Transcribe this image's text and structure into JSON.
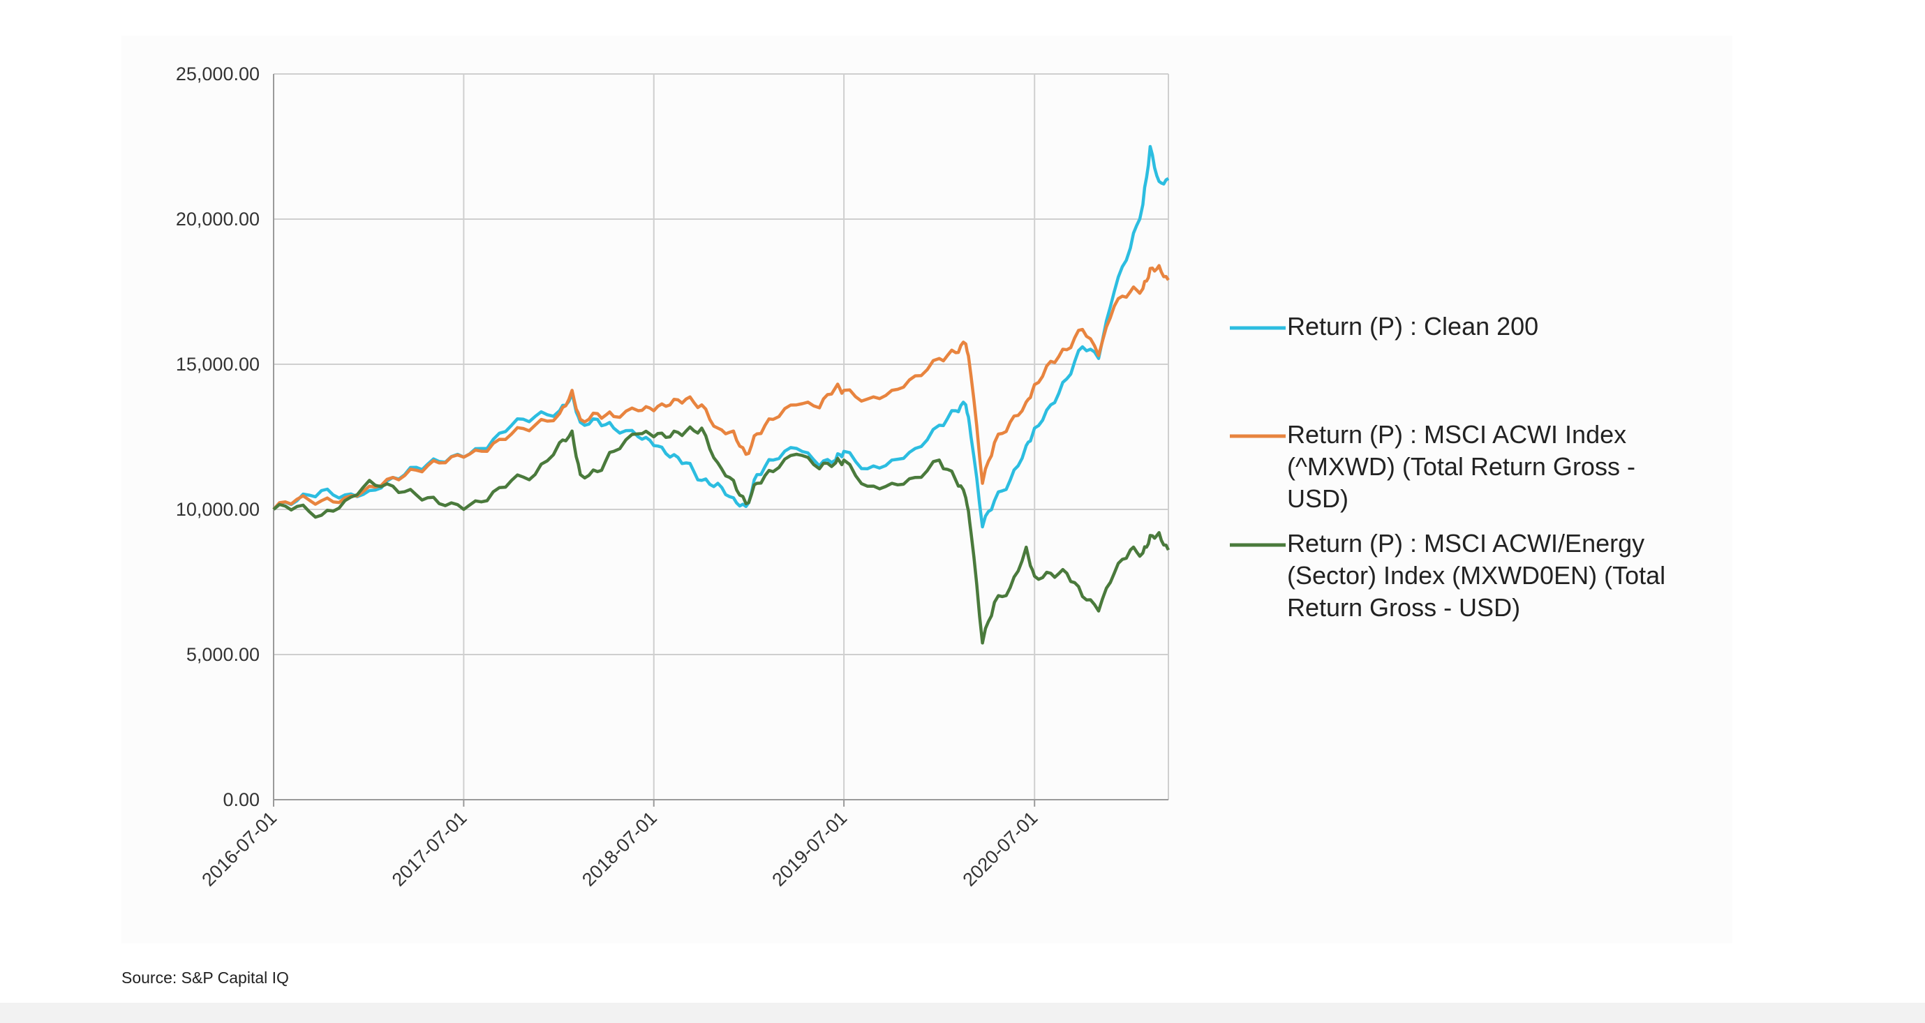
{
  "source_note": "Source: S&P Capital IQ",
  "chart_data": {
    "type": "line",
    "x_ticks": [
      "2016-07-01",
      "2017-07-01",
      "2018-07-01",
      "2019-07-01",
      "2020-07-01"
    ],
    "x_range": [
      "2016-07-01",
      "2021-03-15"
    ],
    "y_ticks": [
      "0.00",
      "5,000.00",
      "10,000.00",
      "15,000.00",
      "20,000.00",
      "25,000.00"
    ],
    "ylim": [
      0,
      25000
    ],
    "grid": true,
    "legend_position": "right",
    "series": [
      {
        "name": "Return (P) : Clean 200",
        "legend_lines": [
          "Return (P) : Clean 200"
        ],
        "color": "#2cbde0",
        "points": [
          [
            "2016-07-01",
            10000
          ],
          [
            "2016-08-15",
            10300
          ],
          [
            "2016-10-01",
            10650
          ],
          [
            "2016-11-15",
            10500
          ],
          [
            "2017-01-01",
            10650
          ],
          [
            "2017-02-15",
            11100
          ],
          [
            "2017-04-01",
            11450
          ],
          [
            "2017-05-15",
            11650
          ],
          [
            "2017-07-01",
            11800
          ],
          [
            "2017-08-15",
            12100
          ],
          [
            "2017-10-01",
            12900
          ],
          [
            "2017-11-15",
            13200
          ],
          [
            "2018-01-01",
            13400
          ],
          [
            "2018-01-25",
            14000
          ],
          [
            "2018-02-10",
            13000
          ],
          [
            "2018-03-15",
            13100
          ],
          [
            "2018-04-15",
            12800
          ],
          [
            "2018-06-01",
            12500
          ],
          [
            "2018-07-01",
            12200
          ],
          [
            "2018-08-01",
            11800
          ],
          [
            "2018-09-01",
            11600
          ],
          [
            "2018-10-01",
            11000
          ],
          [
            "2018-11-01",
            10900
          ],
          [
            "2018-12-01",
            10400
          ],
          [
            "2018-12-25",
            10100
          ],
          [
            "2019-01-15",
            11200
          ],
          [
            "2019-02-15",
            11700
          ],
          [
            "2019-04-01",
            12100
          ],
          [
            "2019-05-15",
            11500
          ],
          [
            "2019-06-15",
            11700
          ],
          [
            "2019-07-01",
            12000
          ],
          [
            "2019-08-15",
            11400
          ],
          [
            "2019-10-01",
            11700
          ],
          [
            "2019-11-15",
            12100
          ],
          [
            "2019-12-31",
            12900
          ],
          [
            "2020-02-01",
            13400
          ],
          [
            "2020-02-20",
            13600
          ],
          [
            "2020-03-01",
            12500
          ],
          [
            "2020-03-23",
            9400
          ],
          [
            "2020-04-15",
            10300
          ],
          [
            "2020-05-15",
            11000
          ],
          [
            "2020-06-15",
            12200
          ],
          [
            "2020-07-01",
            12800
          ],
          [
            "2020-08-01",
            13600
          ],
          [
            "2020-09-01",
            14500
          ],
          [
            "2020-10-01",
            15600
          ],
          [
            "2020-11-01",
            15200
          ],
          [
            "2020-12-01",
            17500
          ],
          [
            "2021-01-01",
            19000
          ],
          [
            "2021-01-25",
            20500
          ],
          [
            "2021-02-08",
            22500
          ],
          [
            "2021-02-25",
            21300
          ],
          [
            "2021-03-15",
            21400
          ]
        ]
      },
      {
        "name": "Return (P) : MSCI ACWI Index (^MXWD) (Total Return Gross - USD)",
        "legend_lines": [
          "Return (P) : MSCI ACWI Index",
          "(^MXWD) (Total Return Gross -",
          "USD)"
        ],
        "color": "#e8843f",
        "points": [
          [
            "2016-07-01",
            10000
          ],
          [
            "2016-08-15",
            10350
          ],
          [
            "2016-10-01",
            10300
          ],
          [
            "2016-11-15",
            10400
          ],
          [
            "2017-01-01",
            10800
          ],
          [
            "2017-02-15",
            11100
          ],
          [
            "2017-04-01",
            11350
          ],
          [
            "2017-05-15",
            11600
          ],
          [
            "2017-07-01",
            11800
          ],
          [
            "2017-08-15",
            12000
          ],
          [
            "2017-10-01",
            12600
          ],
          [
            "2017-11-15",
            12900
          ],
          [
            "2018-01-01",
            13300
          ],
          [
            "2018-01-25",
            14100
          ],
          [
            "2018-02-10",
            13100
          ],
          [
            "2018-03-15",
            13300
          ],
          [
            "2018-04-15",
            13200
          ],
          [
            "2018-06-01",
            13400
          ],
          [
            "2018-07-01",
            13400
          ],
          [
            "2018-08-01",
            13600
          ],
          [
            "2018-09-01",
            13800
          ],
          [
            "2018-10-01",
            13600
          ],
          [
            "2018-11-01",
            12800
          ],
          [
            "2018-12-01",
            12700
          ],
          [
            "2018-12-25",
            11900
          ],
          [
            "2019-01-15",
            12600
          ],
          [
            "2019-02-15",
            13100
          ],
          [
            "2019-04-01",
            13600
          ],
          [
            "2019-05-15",
            13500
          ],
          [
            "2019-06-15",
            14200
          ],
          [
            "2019-07-01",
            14100
          ],
          [
            "2019-08-15",
            13800
          ],
          [
            "2019-10-01",
            14100
          ],
          [
            "2019-11-15",
            14600
          ],
          [
            "2019-12-31",
            15200
          ],
          [
            "2020-02-01",
            15400
          ],
          [
            "2020-02-20",
            15700
          ],
          [
            "2020-03-01",
            14600
          ],
          [
            "2020-03-23",
            10900
          ],
          [
            "2020-04-15",
            12300
          ],
          [
            "2020-05-15",
            13000
          ],
          [
            "2020-06-15",
            13700
          ],
          [
            "2020-07-01",
            14300
          ],
          [
            "2020-08-01",
            15100
          ],
          [
            "2020-09-01",
            15500
          ],
          [
            "2020-10-01",
            16200
          ],
          [
            "2020-11-01",
            15300
          ],
          [
            "2020-12-01",
            17000
          ],
          [
            "2021-01-01",
            17500
          ],
          [
            "2021-01-25",
            17600
          ],
          [
            "2021-02-08",
            18300
          ],
          [
            "2021-02-25",
            18400
          ],
          [
            "2021-03-15",
            17900
          ]
        ]
      },
      {
        "name": "Return (P) : MSCI ACWI/Energy (Sector) Index (MXWD0EN) (Total Return Gross - USD)",
        "legend_lines": [
          "Return (P) : MSCI ACWI/Energy",
          "(Sector) Index (MXWD0EN) (Total",
          "Return Gross - USD)"
        ],
        "color": "#4a7a3c",
        "points": [
          [
            "2016-07-01",
            10000
          ],
          [
            "2016-08-15",
            10100
          ],
          [
            "2016-10-01",
            9800
          ],
          [
            "2016-11-15",
            10300
          ],
          [
            "2017-01-01",
            11000
          ],
          [
            "2017-02-15",
            10800
          ],
          [
            "2017-04-01",
            10500
          ],
          [
            "2017-05-15",
            10200
          ],
          [
            "2017-07-01",
            10000
          ],
          [
            "2017-08-15",
            10300
          ],
          [
            "2017-10-01",
            11000
          ],
          [
            "2017-11-15",
            11200
          ],
          [
            "2018-01-01",
            12300
          ],
          [
            "2018-01-25",
            12700
          ],
          [
            "2018-02-10",
            11200
          ],
          [
            "2018-03-15",
            11300
          ],
          [
            "2018-04-15",
            12000
          ],
          [
            "2018-06-01",
            12600
          ],
          [
            "2018-07-01",
            12500
          ],
          [
            "2018-08-01",
            12500
          ],
          [
            "2018-09-01",
            12700
          ],
          [
            "2018-10-01",
            12800
          ],
          [
            "2018-11-01",
            11600
          ],
          [
            "2018-12-01",
            11000
          ],
          [
            "2018-12-25",
            10200
          ],
          [
            "2019-01-15",
            10900
          ],
          [
            "2019-02-15",
            11300
          ],
          [
            "2019-04-01",
            11900
          ],
          [
            "2019-05-15",
            11400
          ],
          [
            "2019-06-15",
            11600
          ],
          [
            "2019-07-01",
            11700
          ],
          [
            "2019-08-15",
            10800
          ],
          [
            "2019-10-01",
            10900
          ],
          [
            "2019-11-15",
            11100
          ],
          [
            "2019-12-31",
            11700
          ],
          [
            "2020-02-01",
            11000
          ],
          [
            "2020-02-20",
            10400
          ],
          [
            "2020-03-01",
            9200
          ],
          [
            "2020-03-23",
            5400
          ],
          [
            "2020-04-15",
            6800
          ],
          [
            "2020-05-15",
            7300
          ],
          [
            "2020-06-15",
            8700
          ],
          [
            "2020-07-01",
            7700
          ],
          [
            "2020-08-01",
            7800
          ],
          [
            "2020-09-01",
            7800
          ],
          [
            "2020-10-01",
            7000
          ],
          [
            "2020-11-01",
            6500
          ],
          [
            "2020-12-01",
            7800
          ],
          [
            "2021-01-01",
            8600
          ],
          [
            "2021-01-25",
            8500
          ],
          [
            "2021-02-08",
            9100
          ],
          [
            "2021-02-25",
            9200
          ],
          [
            "2021-03-15",
            8600
          ]
        ]
      }
    ]
  }
}
